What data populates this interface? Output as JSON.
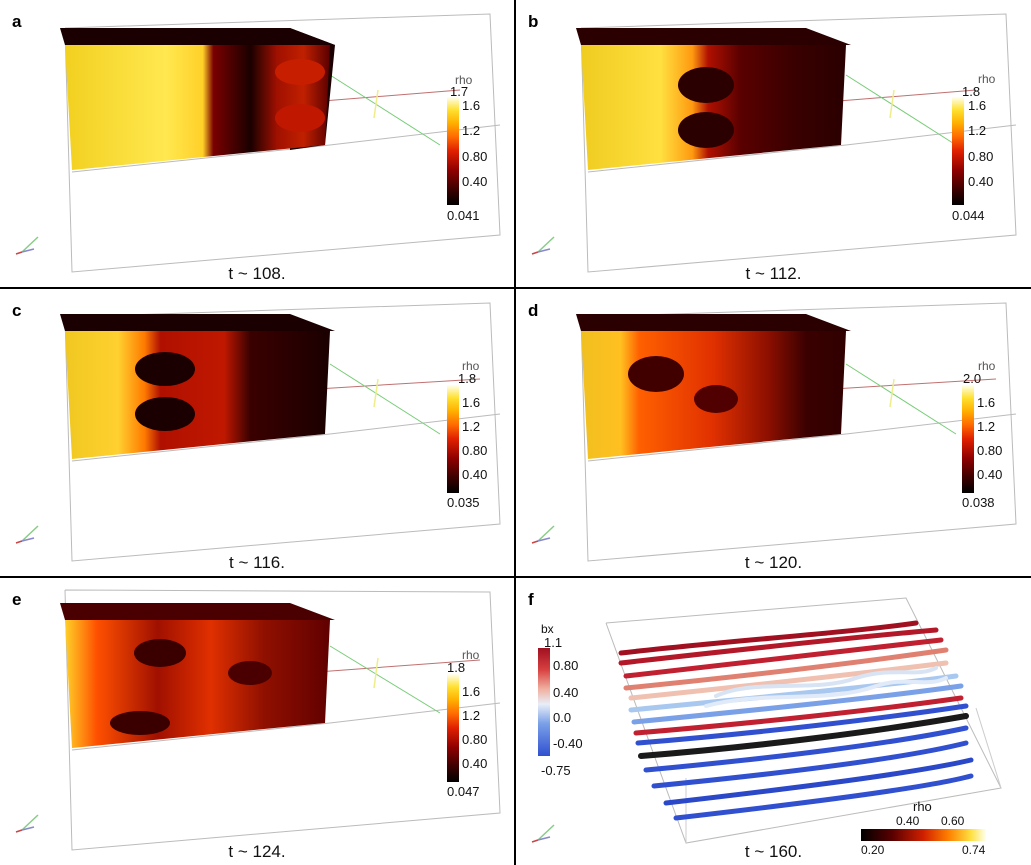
{
  "panels": [
    {
      "label": "a",
      "time": "t ~ 108.",
      "cb_title": "rho",
      "ticks": [
        "1.7",
        "1.6",
        "1.2",
        "0.80",
        "0.40",
        "0.041"
      ]
    },
    {
      "label": "b",
      "time": "t ~ 112.",
      "cb_title": "rho",
      "ticks": [
        "1.8",
        "1.6",
        "1.2",
        "0.80",
        "0.40",
        "0.044"
      ]
    },
    {
      "label": "c",
      "time": "t ~ 116.",
      "cb_title": "rho",
      "ticks": [
        "1.8",
        "1.6",
        "1.2",
        "0.80",
        "0.40",
        "0.035"
      ]
    },
    {
      "label": "d",
      "time": "t ~ 120.",
      "cb_title": "rho",
      "ticks": [
        "2.0",
        "1.6",
        "1.2",
        "0.80",
        "0.40",
        "0.038"
      ]
    },
    {
      "label": "e",
      "time": "t ~ 124.",
      "cb_title": "rho",
      "ticks": [
        "1.8",
        "1.6",
        "1.2",
        "0.80",
        "0.40",
        "0.047"
      ]
    }
  ],
  "panel_f": {
    "label": "f",
    "time": "t ~ 160.",
    "bx_title": "bx",
    "bx_ticks": [
      "1.1",
      "0.80",
      "0.40",
      "0.0",
      "-0.40",
      "-0.75"
    ],
    "rho_title": "rho",
    "rho_top_ticks": [
      "0.40",
      "0.60"
    ],
    "rho_bottom_ticks": [
      "0.20",
      "0.74"
    ]
  },
  "colors": {
    "rho_low": "#000000",
    "rho_mid": "#e02000",
    "rho_high": "#ffffe0",
    "bx_pos": "#b22222",
    "bx_neg": "#3050d0"
  }
}
